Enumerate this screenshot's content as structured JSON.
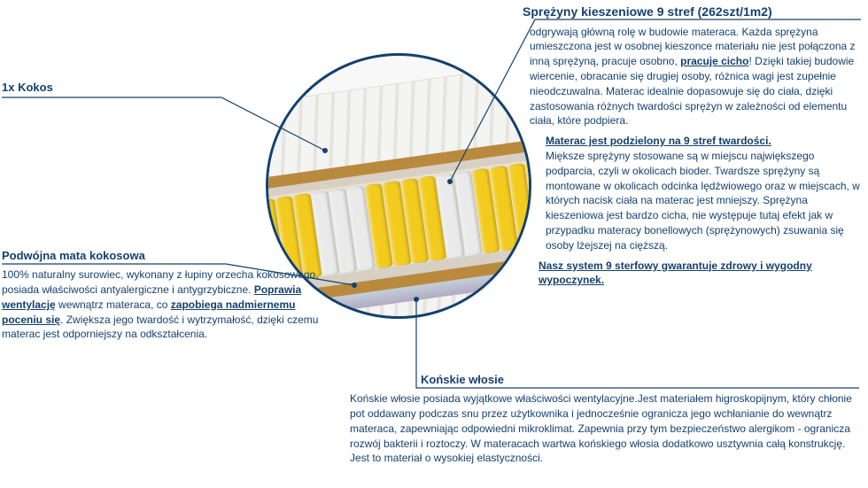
{
  "kokos": {
    "title": "1x Kokos"
  },
  "mata": {
    "title": "Podwójna mata kokosowa",
    "body_1": "100% naturalny surowiec, wykonany z łupiny orzecha kokosowego, posiada właściwości antyalergiczne i antygrzybiczne. ",
    "body_bold_1": "Poprawia wentylację",
    "body_2": " wewnątrz materaca, co ",
    "body_bold_2": "zapobiega nadmiernemu poceniu się",
    "body_3": ". Zwiększa jego twardość i wytrzymałość, dzięki czemu materac jest odporniejszy na odkształcenia."
  },
  "springs": {
    "title": "Sprężyny kieszeniowe 9 stref (262szt/1m2)",
    "p1_a": "odgrywają główną rolę w budowie materaca. Każda sprężyna umieszczona jest w osobnej kieszonce materiału nie jest połączona z inną sprężyną, pracuje osobno, ",
    "p1_b": "pracuje cicho",
    "p1_c": "! Dzięki takiej budowie wiercenie, obracanie się drugiej osoby, różnica wagi jest zupełnie nieodczuwalna. Materac idealnie dopasowuje się do ciała, dzięki zastosowania różnych twardości sprężyn w zależności od elementu ciała, które podpiera.",
    "p2_title": "Materac jest podzielony na 9 stref twardości.",
    "p2_body": "Miększe sprężyny stosowane są w miejscu największego podparcia, czyli w okolicach bioder. Twardsze sprężyny są montowane w okolicach odcinka lędźwiowego oraz w miejscach, w których nacisk ciała na materac jest mniejszy. Sprężyna kieszeniowa jest bardzo cicha, nie występuje tutaj efekt jak w przypadku materacy bonellowych (sprężynowych) zsuwania się osoby lżejszej na cięższą.",
    "p3": "Nasz system 9 sterfowy gwarantuje zdrowy i wygodny wypoczynek."
  },
  "horsehair": {
    "title": "Końskie włosie",
    "body": "Końskie włosie posiada wyjątkowe właściwości wentylacyjne.Jest materiałem higroskopijnym, który chłonie pot oddawany podczas snu przez użytkownika i jednocześnie ogranicza jego wchłanianie do wewnątrz materaca, zapewniając odpowiedni mikroklimat. Zapewnia przy tym bezpieczeństwo alergikom - ogranicza rozwój bakterii i roztoczy. W materacach wartwa końskiego włosia dodatkowo usztywnia całą konstrukcję. Jest to materiał o wysokiej elastyczności."
  },
  "spring_pattern": [
    "yellow",
    "yellow",
    "yellow",
    "yellow",
    "white",
    "white",
    "white",
    "yellow",
    "yellow",
    "yellow",
    "yellow",
    "white",
    "white",
    "yellow",
    "yellow",
    "yellow",
    "yellow",
    "yellow"
  ]
}
